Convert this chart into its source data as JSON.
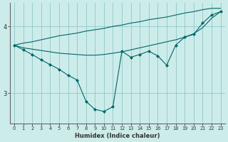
{
  "xlabel": "Humidex (Indice chaleur)",
  "background_color": "#ccecea",
  "grid_color": "#99cccc",
  "line_color": "#006666",
  "xlim": [
    -0.5,
    23.5
  ],
  "ylim": [
    2.55,
    4.35
  ],
  "yticks": [
    3.0,
    4.0
  ],
  "xticks": [
    0,
    1,
    2,
    3,
    4,
    5,
    6,
    7,
    8,
    9,
    10,
    11,
    12,
    13,
    14,
    15,
    16,
    17,
    18,
    19,
    20,
    21,
    22,
    23
  ],
  "series": {
    "zigzag": [
      3.72,
      3.65,
      3.58,
      3.5,
      3.43,
      3.36,
      3.27,
      3.2,
      2.88,
      2.76,
      2.73,
      2.8,
      3.63,
      3.54,
      3.58,
      3.63,
      3.56,
      3.42,
      3.72,
      3.84,
      3.88,
      4.05,
      4.17,
      4.22
    ],
    "upper": [
      3.72,
      3.75,
      3.77,
      3.8,
      3.83,
      3.86,
      3.88,
      3.9,
      3.93,
      3.95,
      3.97,
      4.0,
      4.02,
      4.05,
      4.07,
      4.1,
      4.12,
      4.14,
      4.17,
      4.2,
      4.22,
      4.25,
      4.27,
      4.27
    ],
    "lower": [
      3.72,
      3.68,
      3.66,
      3.64,
      3.62,
      3.6,
      3.59,
      3.58,
      3.57,
      3.57,
      3.58,
      3.6,
      3.62,
      3.65,
      3.68,
      3.71,
      3.74,
      3.77,
      3.8,
      3.84,
      3.89,
      3.98,
      4.12,
      4.22
    ]
  }
}
